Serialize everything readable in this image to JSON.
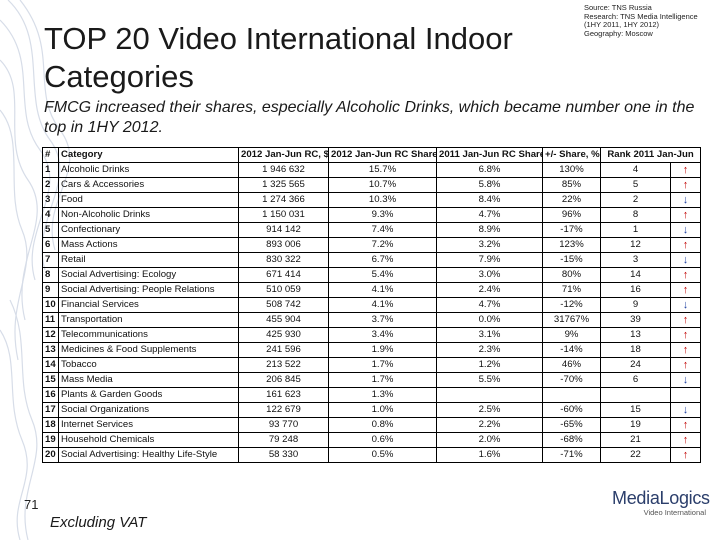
{
  "slide": {
    "title": "TOP 20 Video International Indoor Categories",
    "source_lines": [
      "Source: TNS Russia",
      "Research: TNS Media Intelligence",
      "(1HY 2011, 1HY 2012)",
      "Geography: Moscow"
    ],
    "subtitle": "FMCG increased their shares, especially Alcoholic Drinks, which became number one in the top in 1HY 2012.",
    "page_number": "71",
    "footnote": "Excluding VAT",
    "logo_main": "MediaLogics",
    "logo_sub": "Video International",
    "colors": {
      "arrow_up": "#c00000",
      "arrow_down": "#1f3fa0"
    }
  },
  "table": {
    "headers": [
      "#",
      "Category",
      "2012 Jan-Jun RC, $",
      "2012 Jan-Jun RC Share",
      "2011 Jan-Jun RC Share",
      "+/- Share, %",
      "Rank 2011 Jan-Jun",
      ""
    ],
    "rows": [
      [
        "1",
        "Alcoholic Drinks",
        "1 946 632",
        "15.7%",
        "6.8%",
        "130%",
        "4",
        "up"
      ],
      [
        "2",
        "Cars & Accessories",
        "1 325 565",
        "10.7%",
        "5.8%",
        "85%",
        "5",
        "up"
      ],
      [
        "3",
        "Food",
        "1 274 366",
        "10.3%",
        "8.4%",
        "22%",
        "2",
        "down"
      ],
      [
        "4",
        "Non-Alcoholic Drinks",
        "1 150 031",
        "9.3%",
        "4.7%",
        "96%",
        "8",
        "up"
      ],
      [
        "5",
        "Confectionary",
        "914 142",
        "7.4%",
        "8.9%",
        "-17%",
        "1",
        "down"
      ],
      [
        "6",
        "Mass Actions",
        "893 006",
        "7.2%",
        "3.2%",
        "123%",
        "12",
        "up"
      ],
      [
        "7",
        "Retail",
        "830 322",
        "6.7%",
        "7.9%",
        "-15%",
        "3",
        "down"
      ],
      [
        "8",
        "Social Advertising: Ecology",
        "671 414",
        "5.4%",
        "3.0%",
        "80%",
        "14",
        "up"
      ],
      [
        "9",
        "Social Advertising: People Relations",
        "510 059",
        "4.1%",
        "2.4%",
        "71%",
        "16",
        "up"
      ],
      [
        "10",
        "Financial Services",
        "508 742",
        "4.1%",
        "4.7%",
        "-12%",
        "9",
        "down"
      ],
      [
        "11",
        "Transportation",
        "455 904",
        "3.7%",
        "0.0%",
        "31767%",
        "39",
        "up"
      ],
      [
        "12",
        "Telecommunications",
        "425 930",
        "3.4%",
        "3.1%",
        "9%",
        "13",
        "up"
      ],
      [
        "13",
        "Medicines & Food Supplements",
        "241 596",
        "1.9%",
        "2.3%",
        "-14%",
        "18",
        "up"
      ],
      [
        "14",
        "Tobacco",
        "213 522",
        "1.7%",
        "1.2%",
        "46%",
        "24",
        "up"
      ],
      [
        "15",
        "Mass Media",
        "206 845",
        "1.7%",
        "5.5%",
        "-70%",
        "6",
        "down"
      ],
      [
        "16",
        "Plants & Garden Goods",
        "161 623",
        "1.3%",
        "",
        "",
        "",
        ""
      ],
      [
        "17",
        "Social Organizations",
        "122 679",
        "1.0%",
        "2.5%",
        "-60%",
        "15",
        "down"
      ],
      [
        "18",
        "Internet Services",
        "93 770",
        "0.8%",
        "2.2%",
        "-65%",
        "19",
        "up"
      ],
      [
        "19",
        "Household Chemicals",
        "79 248",
        "0.6%",
        "2.0%",
        "-68%",
        "21",
        "up"
      ],
      [
        "20",
        "Social Advertising: Healthy Life-Style",
        "58 330",
        "0.5%",
        "1.6%",
        "-71%",
        "22",
        "up"
      ]
    ]
  }
}
